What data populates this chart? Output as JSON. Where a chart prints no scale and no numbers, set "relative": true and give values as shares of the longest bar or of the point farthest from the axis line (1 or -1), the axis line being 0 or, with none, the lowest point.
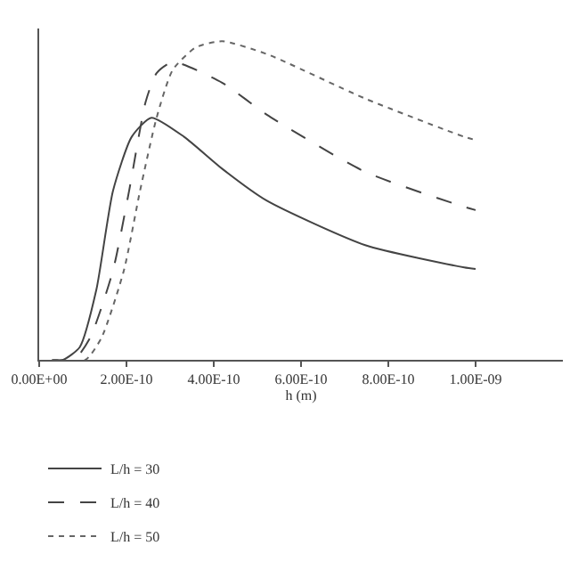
{
  "chart_data": {
    "type": "line",
    "relative": true,
    "xlabel": "h (m)",
    "xlim": [
      0,
      1.2e-09
    ],
    "xticks": [
      {
        "value": 0,
        "label": "0.00E+00"
      },
      {
        "value": 2e-10,
        "label": "2.00E-10"
      },
      {
        "value": 4e-10,
        "label": "4.00E-10"
      },
      {
        "value": 6e-10,
        "label": "6.00E-10"
      },
      {
        "value": 8e-10,
        "label": "8.00E-10"
      },
      {
        "value": 1e-09,
        "label": "1.00E-09"
      }
    ],
    "tick_labels": "x",
    "legend": "bottom left",
    "series": [
      {
        "name": "L/h = 30",
        "color": "#444444",
        "line_style": "solid",
        "x": [
          3e-11,
          5.5e-11,
          9.3e-11,
          1.31e-10,
          1.69e-10,
          2.12e-10,
          2.57e-10,
          3.32e-10,
          4.19e-10,
          5.21e-10,
          7.47e-10,
          9.74e-10,
          1e-09
        ],
        "values": [
          0,
          0,
          0.04,
          0.22,
          0.53,
          0.7,
          0.76,
          0.7,
          0.6,
          0.5,
          0.36,
          0.29,
          0.285
        ]
      },
      {
        "name": "L/h = 40",
        "color": "#444444",
        "line_style": "dashed",
        "x": [
          3e-11,
          8e-11,
          1.17e-10,
          1.69e-10,
          2.06e-10,
          2.44e-10,
          2.69e-10,
          3.06e-10,
          4.19e-10,
          5.21e-10,
          7.47e-10,
          9.74e-10,
          1e-09
        ],
        "values": [
          0,
          0,
          0.07,
          0.28,
          0.53,
          0.81,
          0.9,
          0.935,
          0.87,
          0.77,
          0.59,
          0.48,
          0.47
        ]
      },
      {
        "name": "L/h = 50",
        "color": "#666666",
        "line_style": "dotted",
        "x": [
          3e-11,
          1.06e-10,
          1.43e-10,
          1.94e-10,
          2.31e-10,
          2.69e-10,
          3.06e-10,
          3.58e-10,
          4.19e-10,
          5.21e-10,
          7.47e-10,
          9.74e-10,
          1e-09
        ],
        "values": [
          0,
          0,
          0.07,
          0.28,
          0.53,
          0.76,
          0.91,
          0.98,
          1.0,
          0.96,
          0.82,
          0.7,
          0.69
        ]
      }
    ]
  }
}
